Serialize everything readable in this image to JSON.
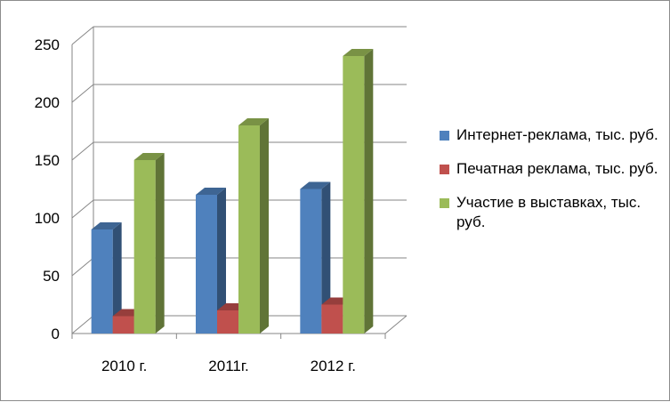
{
  "chart_data": {
    "type": "bar",
    "title": "",
    "xlabel": "",
    "ylabel": "",
    "categories": [
      "2010 г.",
      "2011г.",
      "2012 г."
    ],
    "series": [
      {
        "name": "Интернет-реклама, тыс. руб.",
        "values": [
          90,
          120,
          125
        ],
        "color": "#4F81BD"
      },
      {
        "name": "Печатная реклама, тыс. руб.",
        "values": [
          15,
          20,
          25
        ],
        "color": "#C0504D"
      },
      {
        "name": "Участие в выставках, тыс. руб.",
        "values": [
          150,
          180,
          240
        ],
        "color": "#9BBB59"
      }
    ],
    "ylim": [
      0,
      250
    ],
    "yticks": [
      0,
      50,
      100,
      150,
      200,
      250
    ],
    "grid": true,
    "legend_position": "right"
  }
}
